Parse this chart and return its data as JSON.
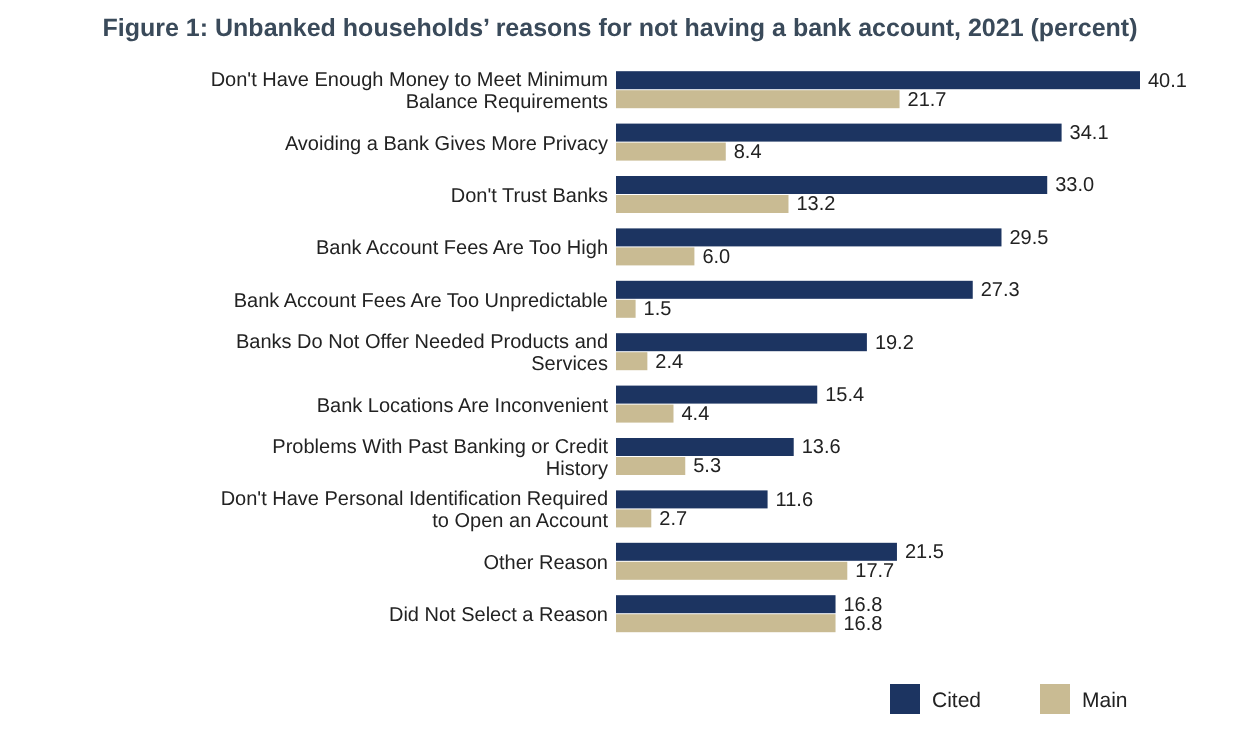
{
  "chart_data": {
    "type": "bar",
    "orientation": "horizontal",
    "title": "Figure 1: Unbanked households’ reasons for not having a bank account, 2021 (percent)",
    "categories": [
      "Don't Have Enough Money to Meet Minimum Balance Requirements",
      "Avoiding a Bank Gives More Privacy",
      "Don't Trust Banks",
      "Bank Account Fees Are Too High",
      "Bank Account Fees Are Too Unpredictable",
      "Banks Do Not Offer Needed Products and Services",
      "Bank Locations Are Inconvenient",
      "Problems With Past Banking or Credit History",
      "Don't Have Personal Identification Required to Open an Account",
      "Other Reason",
      "Did Not Select a Reason"
    ],
    "series": [
      {
        "name": "Cited",
        "color": "#1c3461",
        "values": [
          40.1,
          34.1,
          33.0,
          29.5,
          27.3,
          19.2,
          15.4,
          13.6,
          11.6,
          21.5,
          16.8
        ],
        "value_labels": [
          "40.1",
          "34.1",
          "33.0",
          "29.5",
          "27.3",
          "19.2",
          "15.4",
          "13.6",
          "11.6",
          "21.5",
          "16.8"
        ]
      },
      {
        "name": "Main",
        "color": "#c9bb93",
        "values": [
          21.7,
          8.4,
          13.2,
          6.0,
          1.5,
          2.4,
          4.4,
          5.3,
          2.7,
          17.7,
          16.8
        ],
        "value_labels": [
          "21.7",
          "8.4",
          "13.2",
          "6.0",
          "1.5",
          "2.4",
          "4.4",
          "5.3",
          "2.7",
          "17.7",
          "16.8"
        ]
      }
    ],
    "legend": "bottom right",
    "grid": false
  }
}
